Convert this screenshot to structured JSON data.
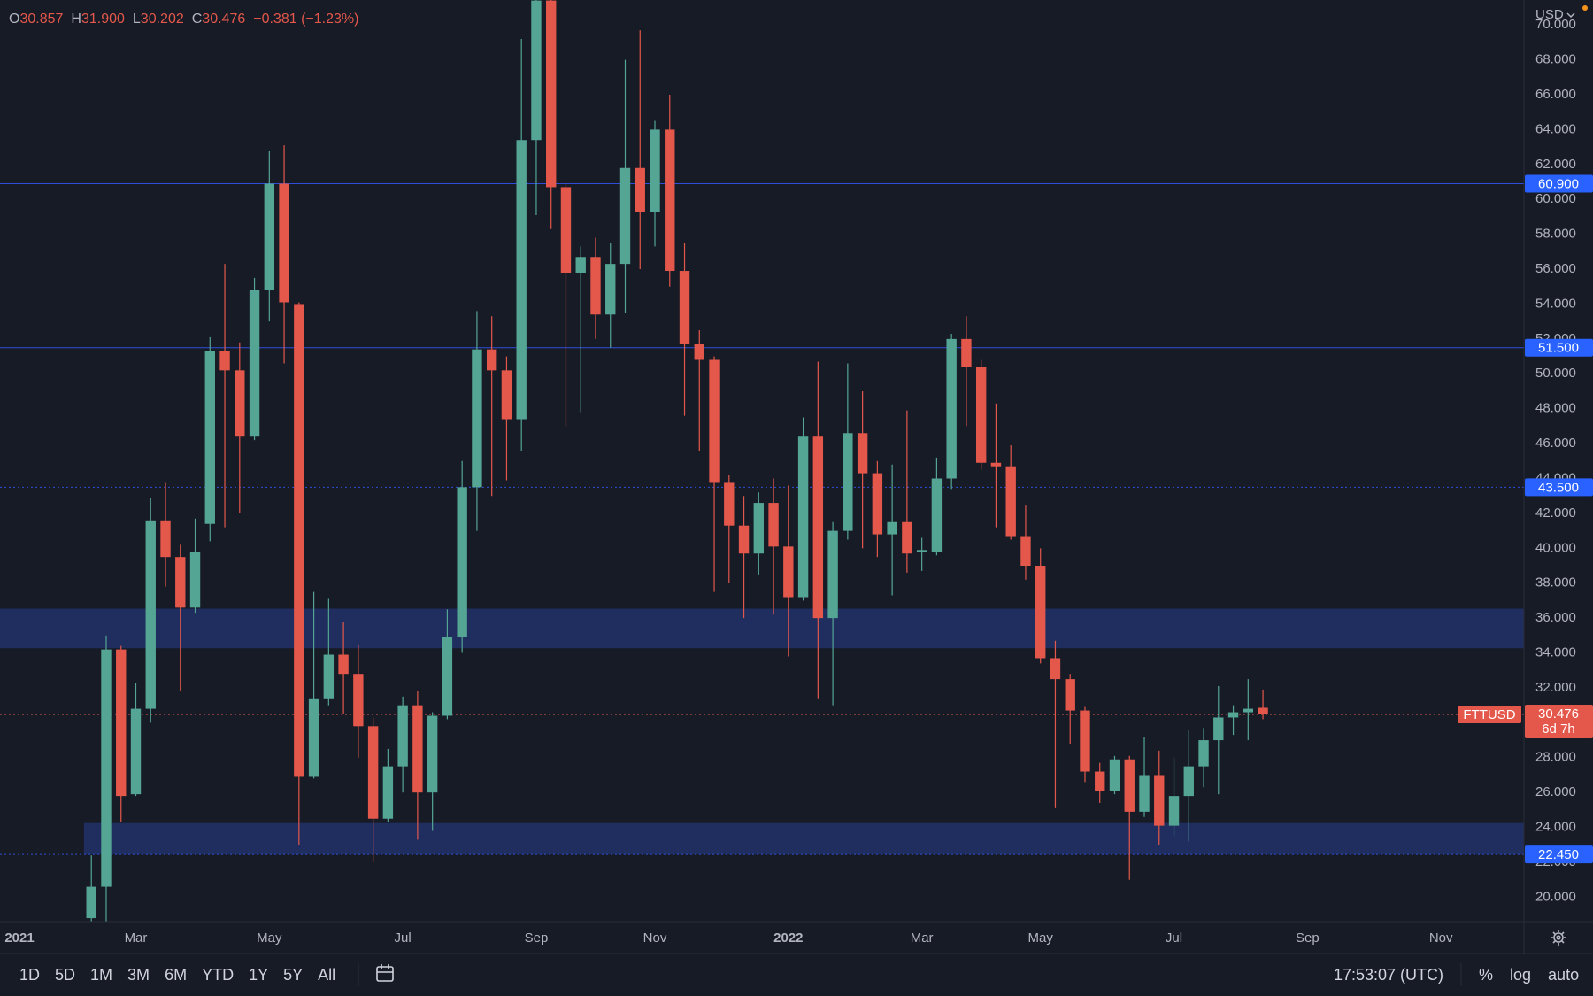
{
  "toolbar": {
    "currency": "USD",
    "ranges": [
      "1D",
      "5D",
      "1M",
      "3M",
      "6M",
      "YTD",
      "1Y",
      "5Y",
      "All"
    ],
    "clock": "17:53:07 (UTC)",
    "options": [
      "%",
      "log",
      "auto"
    ]
  },
  "chart_data": {
    "type": "candlestick",
    "symbol": "FTTUSD",
    "legend": [
      {
        "key": "O",
        "text": "30.857"
      },
      {
        "key": "H",
        "text": "31.900"
      },
      {
        "key": "L",
        "text": "30.202"
      },
      {
        "key": "C",
        "text": "30.476"
      }
    ],
    "change": "−0.381 (−1.23%)",
    "up_color": "#54a594",
    "down_color": "#e4574b",
    "open": [
      18.8,
      20.6,
      34.2,
      25.9,
      30.8,
      41.6,
      39.5,
      36.6,
      41.4,
      51.3,
      50.2,
      46.4,
      54.8,
      60.9,
      54.0,
      26.9,
      31.4,
      33.9,
      32.8,
      29.8,
      24.5,
      27.5,
      31.0,
      26.0,
      30.4,
      34.9,
      43.5,
      51.4,
      50.2,
      47.4,
      63.4,
      71.4,
      60.7,
      55.8,
      56.7,
      53.4,
      56.3,
      61.8,
      59.3,
      64.0,
      55.9,
      51.7,
      50.8,
      43.8,
      41.3,
      39.7,
      42.6,
      40.1,
      37.2,
      46.4,
      36.0,
      41.0,
      46.6,
      44.3,
      40.8,
      41.5,
      39.8,
      39.8,
      44.0,
      52.0,
      50.4,
      44.9,
      44.7,
      40.7,
      39.0,
      33.7,
      32.5,
      30.7,
      27.2,
      26.1,
      27.9,
      24.9,
      27.0,
      24.1,
      25.8,
      27.5,
      29.0,
      30.3,
      30.6,
      30.857
    ],
    "high": [
      22.4,
      35.0,
      34.4,
      32.3,
      42.9,
      43.8,
      40.2,
      41.7,
      52.1,
      56.3,
      51.8,
      55.5,
      62.8,
      63.1,
      54.1,
      37.5,
      37.1,
      35.8,
      34.5,
      30.3,
      28.5,
      31.5,
      31.8,
      30.6,
      36.5,
      45.0,
      53.6,
      53.3,
      51.0,
      69.2,
      73.0,
      73.0,
      60.9,
      57.3,
      57.8,
      57.5,
      68.0,
      69.7,
      64.5,
      66.0,
      57.5,
      52.5,
      51.0,
      44.2,
      43.0,
      43.2,
      44.0,
      43.6,
      47.5,
      50.7,
      41.5,
      50.6,
      49.0,
      45.0,
      44.8,
      47.9,
      40.6,
      45.2,
      52.3,
      53.3,
      50.8,
      48.3,
      45.9,
      42.5,
      40.0,
      34.7,
      32.8,
      30.9,
      27.7,
      28.1,
      28.1,
      29.2,
      28.4,
      28.0,
      29.6,
      29.7,
      32.1,
      31.0,
      32.5,
      31.9
    ],
    "low": [
      18.3,
      18.2,
      24.3,
      25.8,
      30.0,
      37.8,
      31.8,
      36.3,
      40.4,
      41.2,
      42.0,
      46.2,
      53.0,
      50.6,
      23.0,
      26.8,
      31.0,
      30.5,
      28.0,
      22.0,
      24.3,
      26.0,
      23.3,
      23.8,
      30.2,
      34.0,
      41.0,
      43.0,
      43.9,
      45.6,
      59.1,
      58.3,
      47.0,
      47.8,
      52.0,
      51.5,
      53.5,
      56.0,
      57.3,
      55.0,
      47.6,
      45.6,
      37.5,
      38.0,
      36.0,
      38.5,
      36.2,
      33.8,
      37.0,
      31.4,
      31.0,
      40.5,
      40.0,
      39.5,
      37.3,
      38.6,
      38.7,
      39.6,
      43.4,
      47.0,
      44.5,
      41.2,
      40.5,
      38.2,
      33.4,
      25.1,
      28.8,
      26.6,
      25.4,
      25.9,
      21.0,
      24.6,
      23.0,
      23.5,
      23.2,
      26.3,
      25.9,
      29.3,
      29.0,
      30.202
    ],
    "close": [
      20.6,
      34.2,
      25.8,
      30.8,
      41.6,
      39.5,
      36.6,
      39.8,
      51.3,
      50.2,
      46.4,
      54.8,
      60.9,
      54.1,
      26.9,
      31.4,
      33.9,
      32.8,
      29.8,
      24.5,
      27.5,
      31.0,
      26.0,
      30.4,
      34.9,
      43.5,
      51.4,
      50.2,
      47.4,
      63.4,
      71.4,
      60.7,
      55.8,
      56.7,
      53.4,
      56.3,
      61.8,
      59.3,
      64.0,
      55.9,
      51.7,
      50.8,
      43.8,
      41.3,
      39.7,
      42.6,
      40.1,
      37.2,
      46.4,
      36.0,
      41.0,
      46.6,
      44.3,
      40.8,
      41.5,
      39.7,
      39.9,
      44.0,
      52.0,
      50.4,
      44.9,
      44.7,
      40.7,
      39.0,
      33.7,
      32.5,
      30.7,
      27.2,
      26.1,
      27.9,
      24.9,
      27.0,
      24.1,
      25.8,
      27.5,
      29.0,
      30.3,
      30.6,
      30.8,
      30.476
    ],
    "ylim": [
      18.6,
      71.43
    ],
    "yticks": [
      {
        "value": 20,
        "label": "20.000"
      },
      {
        "value": 22,
        "label": "22.000"
      },
      {
        "value": 24,
        "label": "24.000"
      },
      {
        "value": 26,
        "label": "26.000"
      },
      {
        "value": 28,
        "label": "28.000"
      },
      {
        "value": 30,
        "label": "30.000"
      },
      {
        "value": 32,
        "label": "32.000"
      },
      {
        "value": 34,
        "label": "34.000"
      },
      {
        "value": 36,
        "label": "36.000"
      },
      {
        "value": 38,
        "label": "38.000"
      },
      {
        "value": 40,
        "label": "40.000"
      },
      {
        "value": 42,
        "label": "42.000"
      },
      {
        "value": 44,
        "label": "44.000"
      },
      {
        "value": 46,
        "label": "46.000"
      },
      {
        "value": 48,
        "label": "48.000"
      },
      {
        "value": 50,
        "label": "50.000"
      },
      {
        "value": 52,
        "label": "52.000"
      },
      {
        "value": 54,
        "label": "54.000"
      },
      {
        "value": 56,
        "label": "56.000"
      },
      {
        "value": 58,
        "label": "58.000"
      },
      {
        "value": 60,
        "label": "60.000"
      },
      {
        "value": 62,
        "label": "62.000"
      },
      {
        "value": 64,
        "label": "64.000"
      },
      {
        "value": 66,
        "label": "66.000"
      },
      {
        "value": 68,
        "label": "68.000"
      },
      {
        "value": 70,
        "label": "70.000"
      }
    ],
    "xlim": [
      -6.16,
      96.6
    ],
    "xticks": [
      {
        "value": -5,
        "label": "2021"
      },
      {
        "value": 3,
        "label": "Mar"
      },
      {
        "value": 12,
        "label": "May"
      },
      {
        "value": 21,
        "label": "Jul"
      },
      {
        "value": 30,
        "label": "Sep"
      },
      {
        "value": 38,
        "label": "Nov"
      },
      {
        "value": 47,
        "label": "2022"
      },
      {
        "value": 56,
        "label": "Mar"
      },
      {
        "value": 64,
        "label": "May"
      },
      {
        "value": 73,
        "label": "Jul"
      },
      {
        "value": 82,
        "label": "Sep"
      },
      {
        "value": 91,
        "label": "Nov"
      }
    ],
    "zones": [
      {
        "from": 34.27,
        "to": 36.54,
        "color": "#1f2e5e"
      },
      {
        "from": 22.45,
        "to": 24.25,
        "start": 0,
        "color": "#1f2e5e"
      }
    ],
    "levels": [
      {
        "value": 60.9,
        "label": "60.900",
        "style": "solid",
        "color": "#2f4ed8"
      },
      {
        "value": 51.5,
        "label": "51.500",
        "style": "solid",
        "color": "#2f4ed8"
      },
      {
        "value": 43.5,
        "label": "43.500",
        "style": "dotted",
        "color": "#2f4ed8"
      },
      {
        "value": 22.45,
        "label": "22.450",
        "style": "dotted",
        "color": "#2f4ed8"
      }
    ],
    "last_price": {
      "value": 30.476,
      "label": "30.476",
      "countdown": "6d 7h",
      "color": "#e4574b"
    }
  }
}
